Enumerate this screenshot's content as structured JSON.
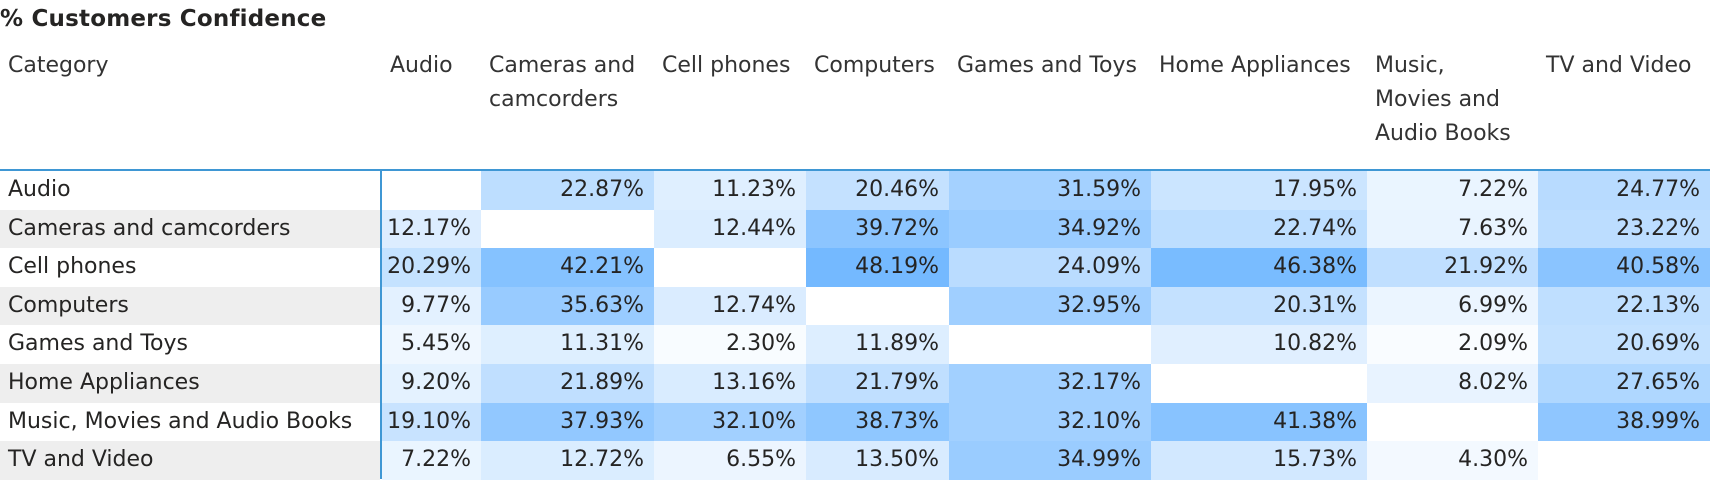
{
  "chart_data": {
    "type": "table",
    "title": "% Customers Confidence",
    "row_header": "Category",
    "columns": [
      "Audio",
      "Cameras and camcorders",
      "Cell phones",
      "Computers",
      "Games and Toys",
      "Home Appliances",
      "Music, Movies and Audio Books",
      "TV and Video"
    ],
    "rows": [
      {
        "label": "Audio",
        "values": [
          null,
          22.87,
          11.23,
          20.46,
          31.59,
          17.95,
          7.22,
          24.77
        ]
      },
      {
        "label": "Cameras and camcorders",
        "values": [
          12.17,
          null,
          12.44,
          39.72,
          34.92,
          22.74,
          7.63,
          23.22
        ]
      },
      {
        "label": "Cell phones",
        "values": [
          20.29,
          42.21,
          null,
          48.19,
          24.09,
          46.38,
          21.92,
          40.58
        ]
      },
      {
        "label": "Computers",
        "values": [
          9.77,
          35.63,
          12.74,
          null,
          32.95,
          20.31,
          6.99,
          22.13
        ]
      },
      {
        "label": "Games and Toys",
        "values": [
          5.45,
          11.31,
          2.3,
          11.89,
          null,
          10.82,
          2.09,
          20.69
        ]
      },
      {
        "label": "Home Appliances",
        "values": [
          9.2,
          21.89,
          13.16,
          21.79,
          32.17,
          null,
          8.02,
          27.65
        ]
      },
      {
        "label": "Music, Movies and Audio Books",
        "values": [
          19.1,
          37.93,
          32.1,
          38.73,
          32.1,
          41.38,
          null,
          38.99
        ]
      },
      {
        "label": "TV and Video",
        "values": [
          7.22,
          12.72,
          6.55,
          13.5,
          34.99,
          15.73,
          4.3,
          null
        ]
      }
    ],
    "value_format": "percent_2dp",
    "color_scale": {
      "min_color": "#ffffff",
      "max_color": "#74b9ff"
    },
    "alternate_row_color": "#eeeeee",
    "accent_color": "#3f97d4"
  }
}
